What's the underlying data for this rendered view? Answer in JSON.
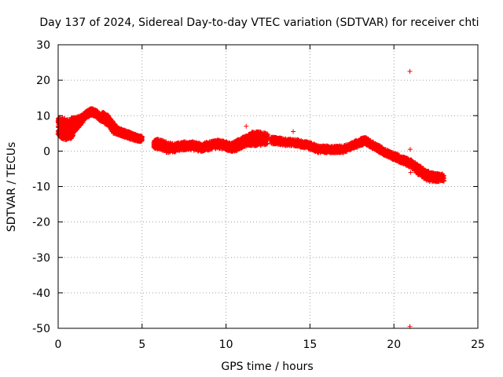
{
  "chart_data": {
    "type": "scatter",
    "title": "Day 137 of 2024, Sidereal Day-to-day VTEC variation (SDTVAR) for receiver chti",
    "xlabel": "GPS time / hours",
    "ylabel": "SDTVAR / TECUs",
    "xlim": [
      0,
      25
    ],
    "ylim": [
      -50,
      30
    ],
    "xticks": [
      0,
      5,
      10,
      15,
      20,
      25
    ],
    "yticks": [
      -50,
      -40,
      -30,
      -20,
      -10,
      0,
      10,
      20,
      30
    ],
    "grid": true,
    "marker": "+",
    "color": "#ff0000",
    "band_description": "Dense scatter of + markers; values are the approximate trend centre at each time (data units) with band spread in data units.",
    "band": {
      "x": [
        0.0,
        0.2,
        0.5,
        0.8,
        1.0,
        1.3,
        1.6,
        1.9,
        2.1,
        2.3,
        2.5,
        2.7,
        3.0,
        3.3,
        3.6,
        3.9,
        4.2,
        4.5,
        4.8,
        5.0
      ],
      "y": [
        7.0,
        6.5,
        6.0,
        6.5,
        7.5,
        8.5,
        10.0,
        11.0,
        11.0,
        10.5,
        9.5,
        9.5,
        8.5,
        6.5,
        5.5,
        5.0,
        4.5,
        4.0,
        3.5,
        3.5
      ],
      "spread": [
        2.5,
        3.0,
        3.0,
        3.0,
        2.0,
        1.5,
        1.0,
        1.0,
        1.0,
        1.0,
        1.0,
        1.5,
        1.5,
        1.5,
        1.0,
        1.0,
        1.0,
        1.0,
        0.8,
        0.8
      ]
    },
    "band2": {
      "x": [
        5.7,
        6.0,
        6.5,
        7.0,
        7.5,
        8.0,
        8.5,
        9.0,
        9.5,
        10.0,
        10.3,
        10.6,
        11.0,
        11.3,
        11.6,
        12.0,
        12.5
      ],
      "y": [
        2.0,
        2.0,
        1.0,
        1.0,
        1.5,
        1.5,
        1.0,
        1.5,
        2.0,
        1.5,
        1.0,
        1.5,
        2.5,
        3.0,
        3.5,
        3.5,
        3.5
      ],
      "spread": [
        1.2,
        1.5,
        1.5,
        1.2,
        1.2,
        1.2,
        1.2,
        1.2,
        1.2,
        1.2,
        1.2,
        1.5,
        1.5,
        1.5,
        2.0,
        2.0,
        1.5
      ]
    },
    "band3": {
      "x": [
        12.7,
        13.0,
        13.5,
        14.0,
        14.5,
        15.0,
        15.5,
        16.0,
        16.5,
        17.0,
        17.5,
        18.0,
        18.3,
        18.6,
        19.0,
        19.5,
        20.0,
        20.5,
        21.0,
        21.5,
        22.0,
        22.5,
        23.0
      ],
      "y": [
        3.0,
        3.0,
        2.5,
        2.5,
        2.0,
        1.5,
        0.5,
        0.5,
        0.5,
        0.5,
        1.5,
        2.5,
        3.0,
        2.0,
        1.0,
        -0.5,
        -1.5,
        -2.5,
        -3.5,
        -5.5,
        -7.0,
        -7.5,
        -7.5
      ],
      "spread": [
        1.0,
        1.0,
        1.0,
        1.0,
        1.0,
        1.0,
        1.0,
        1.0,
        1.0,
        1.0,
        1.0,
        1.0,
        1.0,
        1.0,
        1.0,
        1.0,
        1.0,
        1.0,
        1.2,
        1.5,
        1.5,
        1.2,
        1.0
      ]
    },
    "isolated_points": {
      "x": [
        20.95,
        20.97,
        21.0,
        20.95,
        11.2,
        14.0
      ],
      "y": [
        22.5,
        0.5,
        -6.0,
        -49.5,
        7.0,
        5.5
      ]
    }
  }
}
